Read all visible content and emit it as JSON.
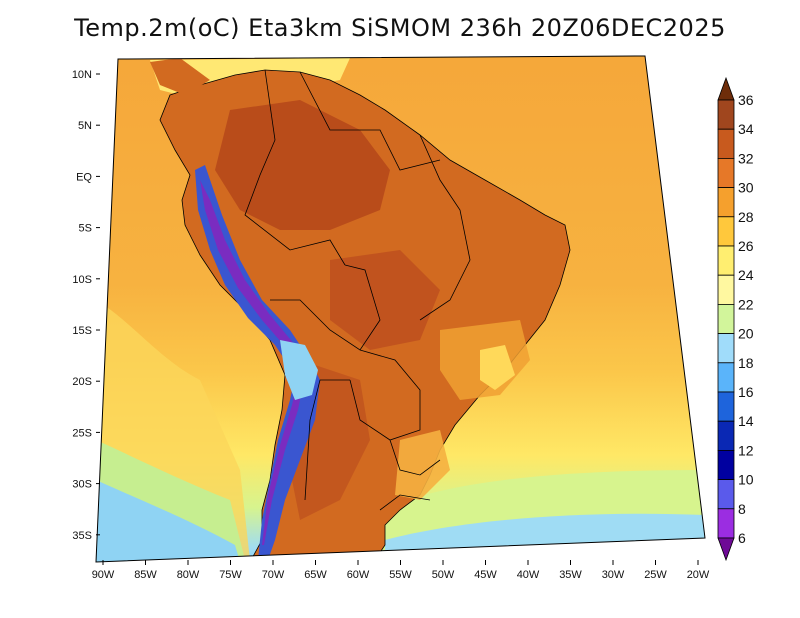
{
  "title": "Temp.2m(oC) Eta3km SiSMOM 236h 20Z06DEC2025",
  "map": {
    "variable": "2 m air temperature",
    "units": "oC",
    "lat_labels": [
      "10N",
      "5N",
      "EQ",
      "5S",
      "10S",
      "15S",
      "20S",
      "25S",
      "30S",
      "35S"
    ],
    "lon_labels": [
      "90W",
      "85W",
      "80W",
      "75W",
      "70W",
      "65W",
      "60W",
      "55W",
      "50W",
      "45W",
      "40W",
      "35W",
      "30W",
      "25W",
      "20W"
    ],
    "colors": {
      "ocean_warm": "#f5b43c",
      "ocean_mild": "#ffe866",
      "ocean_cool": "#c8f08c",
      "ocean_cold": "#8cd2f5",
      "land_hot": "#d2661e",
      "land_very_hot": "#b9461a",
      "andes_cold": "#2850d2",
      "andes_coldest": "#7820b4",
      "border": "#000000"
    }
  },
  "colorbar": {
    "labels": [
      "36",
      "34",
      "32",
      "30",
      "28",
      "26",
      "24",
      "22",
      "20",
      "18",
      "16",
      "14",
      "12",
      "10",
      "8",
      "6"
    ],
    "colors": [
      "#6e2d0a",
      "#a0461e",
      "#c85a1e",
      "#e67828",
      "#f5a02d",
      "#ffc83c",
      "#ffee70",
      "#fff8a0",
      "#d2f59b",
      "#a0dcfa",
      "#5ab4fa",
      "#1e64dc",
      "#0a28b4",
      "#0000a0",
      "#5a5aeb",
      "#9b2de1",
      "#6e0a96"
    ]
  }
}
